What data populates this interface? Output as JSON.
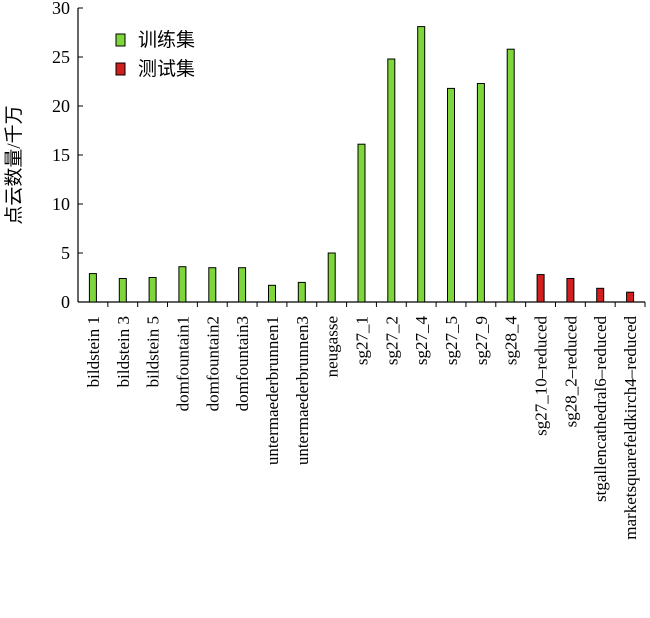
{
  "chart_data": {
    "type": "bar",
    "title": "",
    "xlabel": "",
    "ylabel": "点云数量/千万",
    "ylim": [
      0,
      30
    ],
    "yticks": [
      0,
      5,
      10,
      15,
      20,
      25,
      30
    ],
    "grid": false,
    "legend_placement": "top-left",
    "categories": [
      "bildstein 1",
      "bildstein 3",
      "bildstein 5",
      "domfountain1",
      "domfountain2",
      "domfountain3",
      "untermaederbrunnen1",
      "untermaederbrunnen3",
      "neugasse",
      "sg27_1",
      "sg27_2",
      "sg27_4",
      "sg27_5",
      "sg27_9",
      "sg28_4",
      "sg27_10–reduced",
      "sg28_2–reduced",
      "stgallencathedral6–reduced",
      "marketsquarefeldkirch4–reduced"
    ],
    "series": [
      {
        "name": "训练集",
        "color": "#7fd63a",
        "values": [
          2.9,
          2.4,
          2.5,
          3.6,
          3.5,
          3.5,
          1.7,
          2.0,
          5.0,
          16.1,
          24.8,
          28.1,
          21.8,
          22.3,
          25.8,
          null,
          null,
          null,
          null
        ]
      },
      {
        "name": "测试集",
        "color": "#d11f1f",
        "values": [
          null,
          null,
          null,
          null,
          null,
          null,
          null,
          null,
          null,
          null,
          null,
          null,
          null,
          null,
          null,
          2.8,
          2.4,
          1.4,
          1.0
        ]
      }
    ]
  }
}
